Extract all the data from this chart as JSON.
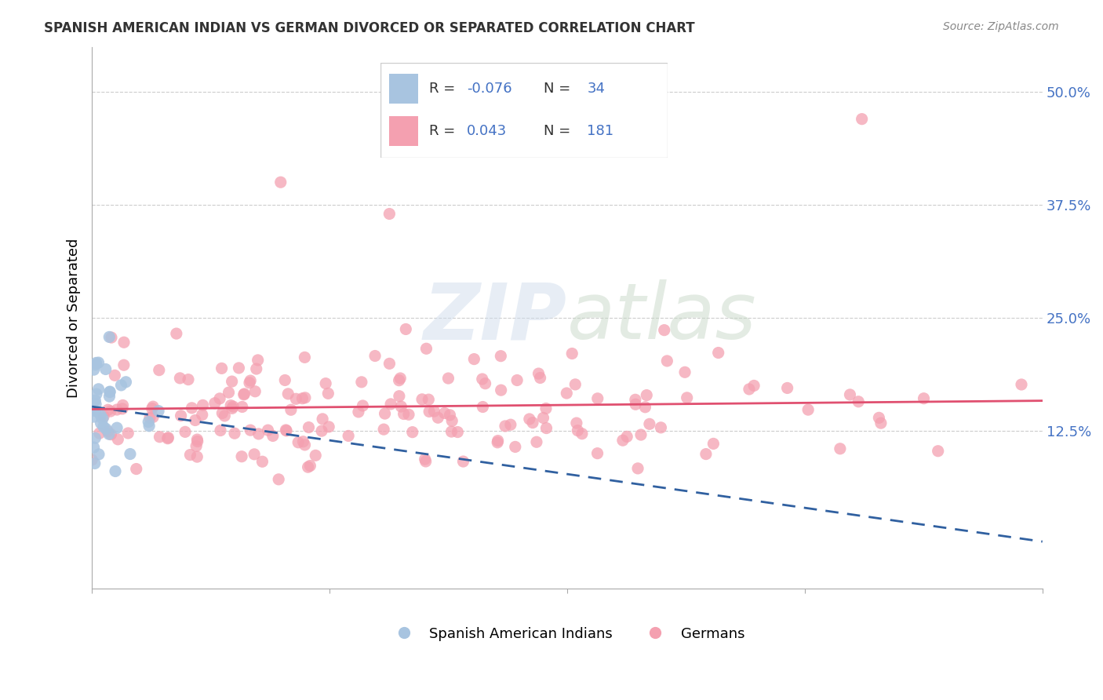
{
  "title": "SPANISH AMERICAN INDIAN VS GERMAN DIVORCED OR SEPARATED CORRELATION CHART",
  "source": "Source: ZipAtlas.com",
  "ylabel": "Divorced or Separated",
  "ytick_labels": [
    "12.5%",
    "25.0%",
    "37.5%",
    "50.0%"
  ],
  "ytick_values": [
    0.125,
    0.25,
    0.375,
    0.5
  ],
  "xlim": [
    0.0,
    1.0
  ],
  "ylim": [
    -0.05,
    0.55
  ],
  "legend_blue_r": "-0.076",
  "legend_blue_n": "34",
  "legend_pink_r": "0.043",
  "legend_pink_n": "181",
  "blue_color": "#a8c4e0",
  "pink_color": "#f4a0b0",
  "blue_line_color": "#3060a0",
  "pink_line_color": "#e05070"
}
